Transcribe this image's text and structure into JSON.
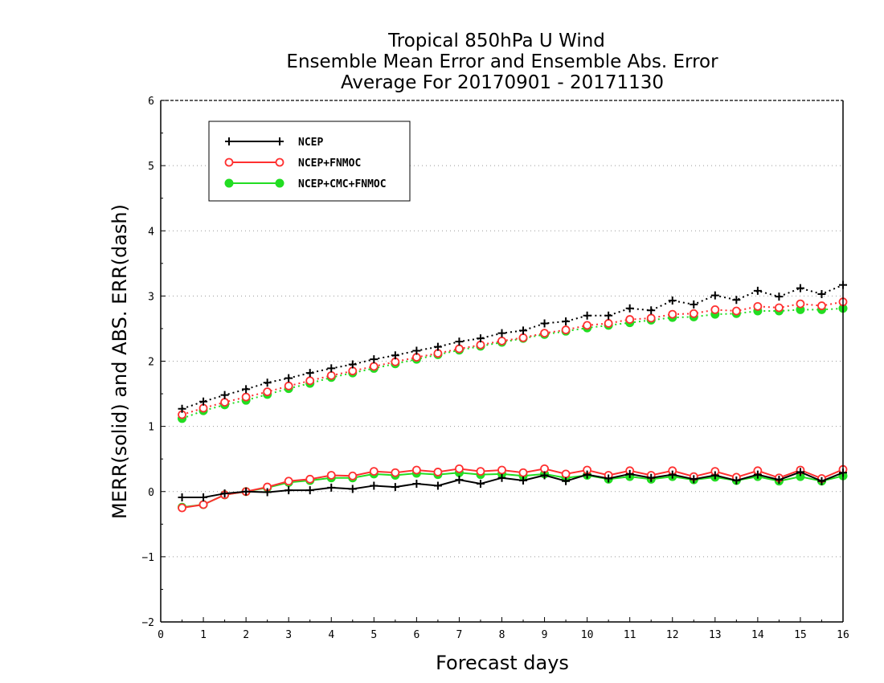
{
  "chart_data": {
    "type": "line",
    "title": [
      "Tropical 850hPa U Wind",
      "Ensemble Mean Error and Ensemble Abs. Error",
      "Average For 20170901 - 20171130"
    ],
    "xlabel": "Forecast days",
    "ylabel": "MERR(solid) and ABS. ERR(dash)",
    "xlim": [
      0,
      16
    ],
    "ylim": [
      -2,
      6
    ],
    "xticks": [
      "0",
      "1",
      "2",
      "3",
      "4",
      "5",
      "6",
      "7",
      "8",
      "9",
      "10",
      "11",
      "12",
      "13",
      "14",
      "15",
      "16"
    ],
    "yticks": [
      "−2",
      "−1",
      "0",
      "1",
      "2",
      "3",
      "4",
      "5",
      "6"
    ],
    "grid": "horizontal dotted",
    "legend_position": "top-left",
    "x": [
      0.5,
      1,
      1.5,
      2,
      2.5,
      3,
      3.5,
      4,
      4.5,
      5,
      5.5,
      6,
      6.5,
      7,
      7.5,
      8,
      8.5,
      9,
      9.5,
      10,
      10.5,
      11,
      11.5,
      12,
      12.5,
      13,
      13.5,
      14,
      14.5,
      15,
      15.5,
      16
    ],
    "series": [
      {
        "name": "NCEP",
        "color": "#000000",
        "marker": "plus",
        "mean_error": [
          -0.09,
          -0.09,
          -0.03,
          0.0,
          -0.01,
          0.02,
          0.02,
          0.06,
          0.04,
          0.09,
          0.07,
          0.12,
          0.09,
          0.18,
          0.12,
          0.21,
          0.17,
          0.25,
          0.16,
          0.26,
          0.2,
          0.27,
          0.21,
          0.26,
          0.19,
          0.25,
          0.17,
          0.26,
          0.18,
          0.3,
          0.16,
          0.29
        ],
        "abs_error": [
          1.27,
          1.38,
          1.48,
          1.57,
          1.67,
          1.74,
          1.82,
          1.89,
          1.95,
          2.03,
          2.09,
          2.16,
          2.22,
          2.3,
          2.35,
          2.43,
          2.47,
          2.58,
          2.61,
          2.7,
          2.7,
          2.81,
          2.78,
          2.93,
          2.87,
          3.01,
          2.94,
          3.08,
          2.99,
          3.12,
          3.03,
          3.17
        ]
      },
      {
        "name": "NCEP+FNMOC",
        "color": "#ff3030",
        "marker": "open-circle",
        "mean_error": [
          -0.25,
          -0.2,
          -0.05,
          0.0,
          0.07,
          0.16,
          0.19,
          0.25,
          0.24,
          0.31,
          0.29,
          0.33,
          0.3,
          0.35,
          0.31,
          0.33,
          0.29,
          0.35,
          0.27,
          0.33,
          0.25,
          0.32,
          0.25,
          0.32,
          0.23,
          0.31,
          0.22,
          0.32,
          0.21,
          0.33,
          0.2,
          0.34
        ],
        "abs_error": [
          1.18,
          1.28,
          1.37,
          1.45,
          1.53,
          1.62,
          1.7,
          1.78,
          1.85,
          1.92,
          1.99,
          2.06,
          2.12,
          2.19,
          2.25,
          2.31,
          2.36,
          2.43,
          2.48,
          2.55,
          2.58,
          2.64,
          2.66,
          2.72,
          2.73,
          2.79,
          2.77,
          2.84,
          2.82,
          2.88,
          2.85,
          2.91
        ]
      },
      {
        "name": "NCEP+CMC+FNMOC",
        "color": "#22dd22",
        "marker": "filled-circle",
        "mean_error": [
          -0.24,
          -0.2,
          -0.05,
          0.0,
          0.06,
          0.14,
          0.17,
          0.21,
          0.21,
          0.27,
          0.25,
          0.28,
          0.26,
          0.29,
          0.26,
          0.27,
          0.24,
          0.27,
          0.21,
          0.25,
          0.19,
          0.23,
          0.19,
          0.23,
          0.18,
          0.22,
          0.17,
          0.23,
          0.16,
          0.23,
          0.16,
          0.24
        ],
        "abs_error": [
          1.12,
          1.24,
          1.33,
          1.4,
          1.49,
          1.58,
          1.66,
          1.75,
          1.82,
          1.89,
          1.96,
          2.03,
          2.1,
          2.17,
          2.23,
          2.29,
          2.35,
          2.41,
          2.46,
          2.51,
          2.55,
          2.59,
          2.63,
          2.67,
          2.68,
          2.72,
          2.73,
          2.77,
          2.77,
          2.79,
          2.79,
          2.81
        ]
      }
    ]
  }
}
